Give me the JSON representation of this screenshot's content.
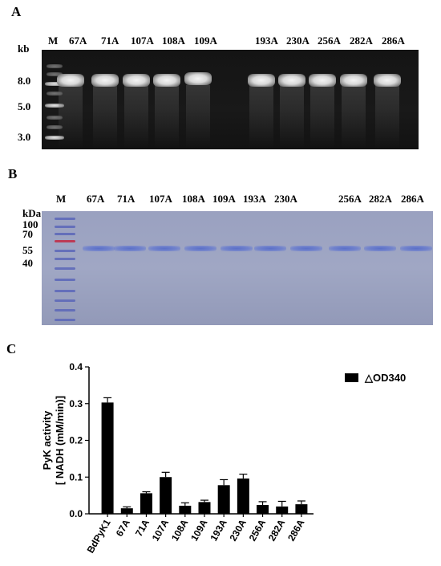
{
  "panels": {
    "A": {
      "letter": "A",
      "unit": "kb",
      "lane_marker": "M",
      "lanes": [
        "67A",
        "71A",
        "107A",
        "108A",
        "109A",
        "193A",
        "230A",
        "256A",
        "282A",
        "286A"
      ],
      "ladder": [
        "8.0",
        "5.0",
        "3.0"
      ]
    },
    "B": {
      "letter": "B",
      "unit": "kDa",
      "lane_marker": "M",
      "lanes": [
        "67A",
        "71A",
        "107A",
        "108A",
        "109A",
        "193A",
        "230A",
        "256A",
        "282A",
        "286A"
      ],
      "ladder": [
        "100",
        "70",
        "55",
        "40"
      ],
      "ladder_highlight_color": "#c0304a",
      "band_color": "#5a6fc8"
    },
    "C": {
      "letter": "C"
    }
  },
  "chart_data": {
    "type": "bar",
    "categories": [
      "BdPyK1",
      "67A",
      "71A",
      "107A",
      "108A",
      "109A",
      "193A",
      "230A",
      "256A",
      "282A",
      "286A"
    ],
    "series": [
      {
        "name": "△OD340",
        "values": [
          0.303,
          0.015,
          0.056,
          0.1,
          0.022,
          0.032,
          0.078,
          0.096,
          0.024,
          0.02,
          0.026
        ],
        "errors": [
          0.013,
          0.004,
          0.004,
          0.013,
          0.008,
          0.005,
          0.015,
          0.012,
          0.009,
          0.014,
          0.009
        ],
        "color": "#000000"
      }
    ],
    "ylabel_line1": "PyK activity",
    "ylabel_line2": "[ NADH (mM/min)]",
    "ylim": [
      0.0,
      0.4
    ],
    "yticks": [
      "0.0",
      "0.1",
      "0.2",
      "0.3",
      "0.4"
    ],
    "grid": false,
    "legend_position": "top-right"
  }
}
